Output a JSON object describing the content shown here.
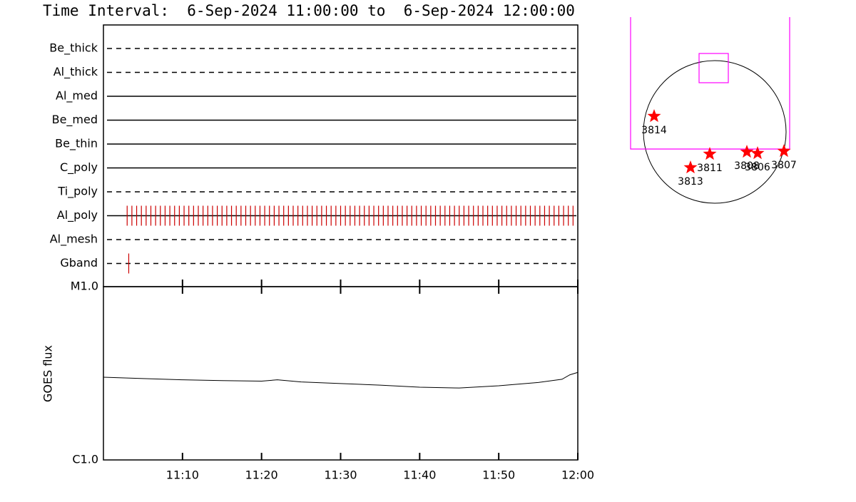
{
  "chart_data": [
    {
      "type": "timeline",
      "title": "Time Interval:  6-Sep-2024 11:00:00 to  6-Sep-2024 12:00:00",
      "xlim": [
        0,
        60
      ],
      "event_color": "#cc0000",
      "rows": [
        {
          "name": "Be_thick",
          "line": "dashed",
          "events": []
        },
        {
          "name": "Al_thick",
          "line": "dashed",
          "events": []
        },
        {
          "name": "Al_med",
          "line": "solid",
          "events": []
        },
        {
          "name": "Be_med",
          "line": "solid",
          "events": []
        },
        {
          "name": "Be_thin",
          "line": "solid",
          "events": []
        },
        {
          "name": "C_poly",
          "line": "solid",
          "events": []
        },
        {
          "name": "Ti_poly",
          "line": "dashed",
          "events": []
        },
        {
          "name": "Al_poly",
          "line": "solid",
          "events": [
            3.0,
            3.6,
            4.2,
            4.8,
            5.4,
            6.0,
            6.6,
            7.2,
            7.8,
            8.4,
            9.0,
            9.6,
            10.2,
            10.8,
            11.4,
            12.0,
            12.6,
            13.2,
            13.8,
            14.4,
            15.0,
            15.6,
            16.2,
            16.8,
            17.4,
            18.0,
            18.6,
            19.2,
            19.8,
            20.4,
            21.0,
            21.6,
            22.2,
            22.8,
            23.4,
            24.0,
            24.6,
            25.2,
            25.8,
            26.4,
            27.0,
            27.6,
            28.2,
            28.8,
            29.4,
            30.0,
            30.6,
            31.2,
            31.8,
            32.4,
            33.0,
            33.6,
            34.2,
            34.8,
            35.4,
            36.0,
            36.6,
            37.2,
            37.8,
            38.4,
            39.0,
            39.6,
            40.2,
            40.8,
            41.4,
            42.0,
            42.6,
            43.2,
            43.8,
            44.4,
            45.0,
            45.6,
            46.2,
            46.8,
            47.4,
            48.0,
            48.6,
            49.2,
            49.8,
            50.4,
            51.0,
            51.6,
            52.2,
            52.8,
            53.4,
            54.0,
            54.6,
            55.2,
            55.8,
            56.4,
            57.0,
            57.6,
            58.2,
            58.8,
            59.4
          ]
        },
        {
          "name": "Al_mesh",
          "line": "dashed",
          "events": []
        },
        {
          "name": "Gband",
          "line": "dashed",
          "events": [
            3.2
          ]
        }
      ]
    },
    {
      "type": "line",
      "y_label": "GOES flux",
      "log_y": true,
      "color": "#000000",
      "x": [
        0,
        5,
        10,
        15,
        20,
        22,
        25,
        30,
        35,
        40,
        45,
        50,
        55,
        58,
        59,
        60
      ],
      "values": [
        3e-06,
        2.95e-06,
        2.9e-06,
        2.87e-06,
        2.85e-06,
        2.9e-06,
        2.82e-06,
        2.76e-06,
        2.7e-06,
        2.63e-06,
        2.6e-06,
        2.68e-06,
        2.8e-06,
        2.92e-06,
        3.1e-06,
        3.2e-06
      ],
      "xlim": [
        0,
        60
      ],
      "xticks": [
        {
          "value": 10,
          "label": "11:10"
        },
        {
          "value": 20,
          "label": "11:20"
        },
        {
          "value": 30,
          "label": "11:30"
        },
        {
          "value": 40,
          "label": "11:40"
        },
        {
          "value": 50,
          "label": "11:50"
        },
        {
          "value": 60,
          "label": "12:00"
        }
      ],
      "ylim": [
        1e-06,
        1e-05
      ],
      "yticks": [
        {
          "value": 1e-06,
          "label": "C1.0"
        },
        {
          "value": 1e-05,
          "label": "M1.0"
        }
      ]
    }
  ],
  "sun_map": {
    "regions": [
      "3814",
      "3811",
      "3813",
      "3808",
      "3806",
      "3807"
    ],
    "marker_color": "#ff0000",
    "fov_color": "#ff00ff"
  }
}
